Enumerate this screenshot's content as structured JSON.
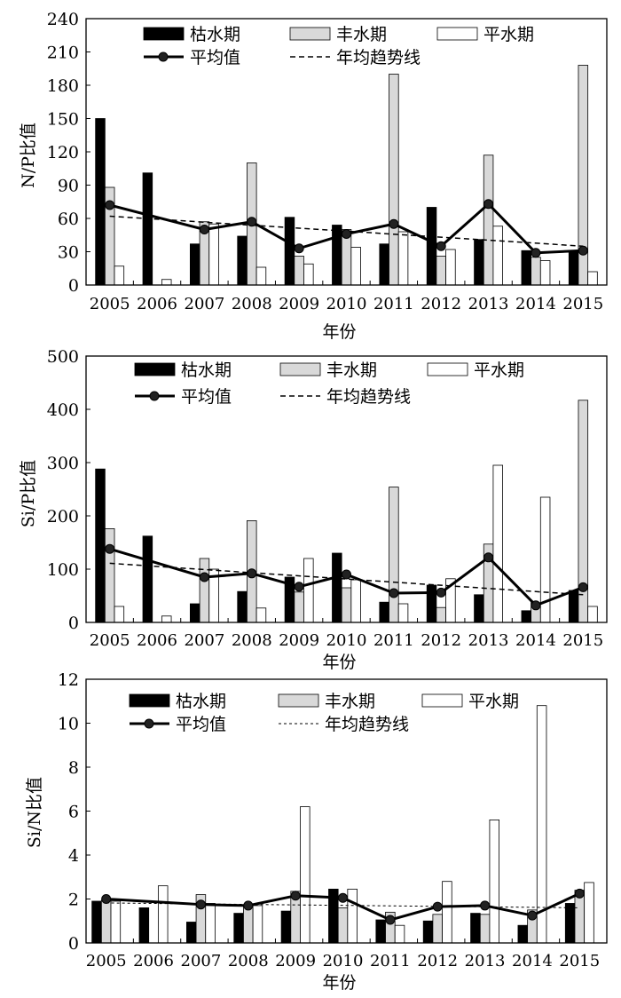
{
  "chart_data": [
    {
      "type": "bar",
      "categories": [
        "2005",
        "2006",
        "2007",
        "2008",
        "2009",
        "2010",
        "2011",
        "2012",
        "2013",
        "2014",
        "2015"
      ],
      "series": [
        {
          "name": "枯水期",
          "color": "#000000",
          "values": [
            150,
            101,
            37,
            44,
            61,
            54,
            37,
            70,
            41,
            31,
            31
          ]
        },
        {
          "name": "丰水期",
          "color": "#d9d9d9",
          "values": [
            88,
            null,
            57,
            110,
            26,
            50,
            190,
            26,
            117,
            25,
            198
          ]
        },
        {
          "name": "平水期",
          "color": "#ffffff",
          "values": [
            17,
            5,
            55,
            16,
            19,
            34,
            48,
            32,
            53,
            22,
            12
          ]
        }
      ],
      "line": {
        "name": "平均值",
        "values": [
          72,
          null,
          50,
          57,
          33,
          46,
          55,
          35,
          73,
          29,
          31
        ]
      },
      "trend": {
        "name": "年均趋势线",
        "values": [
          62,
          35
        ]
      },
      "ylim": [
        0,
        240
      ],
      "yticks": [
        0,
        30,
        60,
        90,
        120,
        150,
        180,
        210,
        240
      ],
      "xlabel": "年份",
      "ylabel": "N/P比值",
      "legend_position": "top"
    },
    {
      "type": "bar",
      "categories": [
        "2005",
        "2006",
        "2007",
        "2008",
        "2009",
        "2010",
        "2011",
        "2012",
        "2013",
        "2014",
        "2015"
      ],
      "series": [
        {
          "name": "枯水期",
          "color": "#000000",
          "values": [
            288,
            162,
            35,
            58,
            85,
            130,
            38,
            70,
            52,
            22,
            60
          ]
        },
        {
          "name": "丰水期",
          "color": "#d9d9d9",
          "values": [
            176,
            null,
            120,
            191,
            57,
            65,
            254,
            28,
            147,
            37,
            417
          ]
        },
        {
          "name": "平水期",
          "color": "#ffffff",
          "values": [
            30,
            12,
            100,
            27,
            120,
            80,
            35,
            82,
            295,
            235,
            30
          ]
        }
      ],
      "line": {
        "name": "平均值",
        "values": [
          138,
          null,
          85,
          92,
          67,
          90,
          55,
          56,
          122,
          32,
          66
        ]
      },
      "trend": {
        "name": "年均趋势线",
        "values": [
          111,
          52
        ]
      },
      "ylim": [
        0,
        500
      ],
      "yticks": [
        0,
        100,
        200,
        300,
        400,
        500
      ],
      "xlabel": "年份",
      "ylabel": "Si/P比值",
      "legend_position": "top"
    },
    {
      "type": "bar",
      "categories": [
        "2005",
        "2006",
        "2007",
        "2008",
        "2009",
        "2010",
        "2011",
        "2012",
        "2013",
        "2014",
        "2015"
      ],
      "series": [
        {
          "name": "枯水期",
          "color": "#000000",
          "values": [
            1.9,
            1.6,
            0.95,
            1.35,
            1.45,
            2.45,
            1.05,
            1.0,
            1.35,
            0.8,
            1.8
          ]
        },
        {
          "name": "丰水期",
          "color": "#d9d9d9",
          "values": [
            1.95,
            null,
            2.2,
            1.7,
            2.35,
            1.6,
            1.4,
            1.3,
            1.3,
            1.5,
            2.4
          ]
        },
        {
          "name": "平水期",
          "color": "#ffffff",
          "values": [
            1.9,
            2.6,
            1.8,
            1.7,
            6.2,
            2.45,
            0.8,
            2.8,
            5.6,
            10.8,
            2.75
          ]
        }
      ],
      "line": {
        "name": "平均值",
        "values": [
          2.0,
          null,
          1.75,
          1.7,
          2.15,
          2.05,
          1.05,
          1.65,
          1.7,
          1.25,
          2.25
        ]
      },
      "trend": {
        "name": "年均趋势线",
        "values": [
          1.82,
          1.6
        ]
      },
      "ylim": [
        0,
        12
      ],
      "yticks": [
        0,
        2,
        4,
        6,
        8,
        10,
        12
      ],
      "xlabel": "年份",
      "ylabel": "Si/N比值",
      "legend_position": "top"
    }
  ]
}
